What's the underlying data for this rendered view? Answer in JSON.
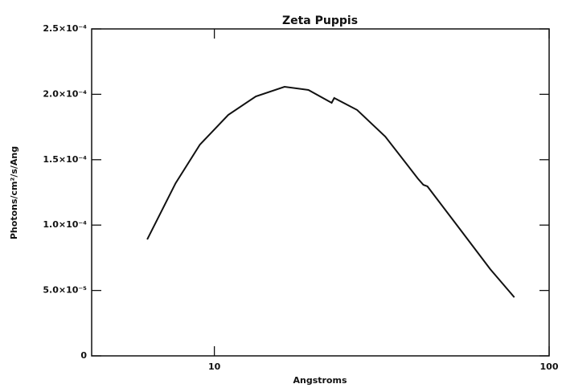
{
  "chart_data": {
    "type": "line",
    "title": "Zeta Puppis",
    "x_label": "Angstroms",
    "y_label": "Photons/cm²/s/Ang",
    "x_log": true,
    "xlim": [
      4.3,
      100
    ],
    "xticks": [
      10,
      100
    ],
    "ylim": [
      0,
      0.00025
    ],
    "yticks": [
      0,
      {
        "value": 5e-05,
        "label": "5.0×10⁻⁵"
      },
      {
        "value": 0.0001,
        "label": "1.0×10⁻⁴"
      },
      {
        "value": 0.00015,
        "label": "1.5×10⁻⁴"
      },
      {
        "value": 0.0002,
        "label": "2.0×10⁻⁴"
      },
      {
        "value": 0.00025,
        "label": "2.5×10⁻⁴"
      }
    ],
    "x": [
      6.3,
      7.66,
      9.05,
      11.0,
      13.3,
      16.2,
      19.1,
      22.4,
      22.8,
      26.7,
      32.4,
      40.5,
      42.1,
      43.3,
      53.4,
      66.7,
      78.7
    ],
    "series": [
      {
        "color": "#111111",
        "values": [
          8.9e-05,
          0.000132,
          0.0001615,
          0.0001843,
          0.0001984,
          0.0002058,
          0.0002033,
          0.0001935,
          0.0001972,
          0.000188,
          0.0001677,
          0.0001357,
          0.0001308,
          0.0001296,
          9.89e-05,
          6.63e-05,
          4.48e-05
        ]
      }
    ]
  }
}
